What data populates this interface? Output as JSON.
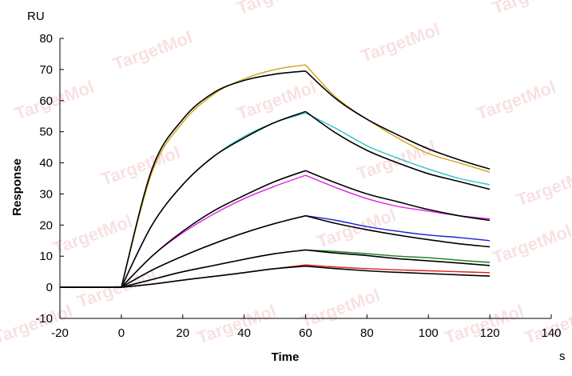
{
  "chart_data": {
    "type": "line",
    "title": "",
    "xlabel": "Time",
    "ylabel": "Response",
    "x_unit": "s",
    "y_unit": "RU",
    "xlim": [
      -20,
      140
    ],
    "ylim": [
      -10,
      80
    ],
    "x_ticks": [
      -20,
      0,
      20,
      40,
      60,
      80,
      100,
      120,
      140
    ],
    "y_ticks": [
      -10,
      0,
      10,
      20,
      30,
      40,
      50,
      60,
      70,
      80
    ],
    "watermark": "TargetMol",
    "series": [
      {
        "color": "#d4a017",
        "x": [
          -20,
          0,
          10,
          20,
          30,
          40,
          50,
          60,
          70,
          80,
          90,
          100,
          110,
          120
        ],
        "y": [
          0,
          0,
          37,
          53,
          62,
          67,
          70,
          71.5,
          61,
          54,
          48,
          43,
          40,
          37
        ]
      },
      {
        "color": "#000000",
        "x": [
          -20,
          0,
          10,
          20,
          30,
          40,
          50,
          60,
          70,
          80,
          90,
          100,
          110,
          120
        ],
        "y": [
          0,
          0,
          38,
          54,
          62.5,
          66.5,
          68.5,
          69.5,
          60.5,
          54,
          49,
          44.5,
          41,
          38
        ]
      },
      {
        "color": "#2ec4c4",
        "x": [
          -20,
          0,
          10,
          20,
          30,
          40,
          50,
          60,
          70,
          80,
          90,
          100,
          110,
          120
        ],
        "y": [
          0,
          0,
          20,
          33,
          42,
          48.5,
          53,
          56,
          51,
          45.5,
          41.5,
          38,
          35,
          33
        ]
      },
      {
        "color": "#000000",
        "x": [
          -20,
          0,
          10,
          20,
          30,
          40,
          50,
          60,
          70,
          80,
          90,
          100,
          110,
          120
        ],
        "y": [
          0,
          0,
          20,
          33,
          42,
          48,
          53,
          56.5,
          49.5,
          44,
          40,
          36.5,
          34,
          31.5
        ]
      },
      {
        "color": "#e020e0",
        "x": [
          -20,
          0,
          10,
          20,
          30,
          40,
          50,
          60,
          70,
          80,
          90,
          100,
          110,
          120
        ],
        "y": [
          0,
          0,
          10,
          17.5,
          23.5,
          28.5,
          32.5,
          36,
          32,
          28.5,
          26,
          24.5,
          23,
          22
        ]
      },
      {
        "color": "#000000",
        "x": [
          -20,
          0,
          10,
          20,
          30,
          40,
          50,
          60,
          70,
          80,
          90,
          100,
          110,
          120
        ],
        "y": [
          0,
          0,
          10,
          18,
          24.5,
          29.5,
          34,
          37.5,
          33.5,
          30,
          27.5,
          25,
          23,
          21.5
        ]
      },
      {
        "color": "#1f1fd6",
        "x": [
          -20,
          0,
          10,
          20,
          30,
          40,
          50,
          60,
          70,
          80,
          90,
          100,
          110,
          120
        ],
        "y": [
          0,
          0,
          5.5,
          10,
          14,
          17.5,
          20.5,
          23,
          21.5,
          19.5,
          18,
          16.8,
          16,
          15
        ]
      },
      {
        "color": "#000000",
        "x": [
          -20,
          0,
          10,
          20,
          30,
          40,
          50,
          60,
          70,
          80,
          90,
          100,
          110,
          120
        ],
        "y": [
          0,
          0,
          5.5,
          10,
          14,
          17.5,
          20.5,
          23,
          20.5,
          18.5,
          16.8,
          15.3,
          14,
          13
        ]
      },
      {
        "color": "#1a7a1a",
        "x": [
          -20,
          0,
          10,
          20,
          30,
          40,
          50,
          60,
          70,
          80,
          90,
          100,
          110,
          120
        ],
        "y": [
          0,
          0,
          2.5,
          5,
          7,
          9,
          10.8,
          12,
          11.5,
          10.8,
          10,
          9.5,
          8.7,
          8
        ]
      },
      {
        "color": "#000000",
        "x": [
          -20,
          0,
          10,
          20,
          30,
          40,
          50,
          60,
          70,
          80,
          90,
          100,
          110,
          120
        ],
        "y": [
          0,
          0,
          2.5,
          5,
          7,
          9,
          10.8,
          12,
          11,
          10.2,
          9.2,
          8.5,
          7.8,
          7
        ]
      },
      {
        "color": "#e02020",
        "x": [
          -20,
          0,
          10,
          20,
          30,
          40,
          50,
          60,
          70,
          80,
          90,
          100,
          110,
          120
        ],
        "y": [
          0,
          0,
          1,
          2.3,
          3.5,
          4.7,
          6,
          7.2,
          6.5,
          6,
          5.6,
          5.3,
          5,
          4.7
        ]
      },
      {
        "color": "#000000",
        "x": [
          -20,
          0,
          10,
          20,
          30,
          40,
          50,
          60,
          70,
          80,
          90,
          100,
          110,
          120
        ],
        "y": [
          0,
          0,
          1,
          2.3,
          3.5,
          4.7,
          6,
          6.8,
          6,
          5.3,
          4.8,
          4.4,
          4,
          3.6
        ]
      }
    ]
  }
}
